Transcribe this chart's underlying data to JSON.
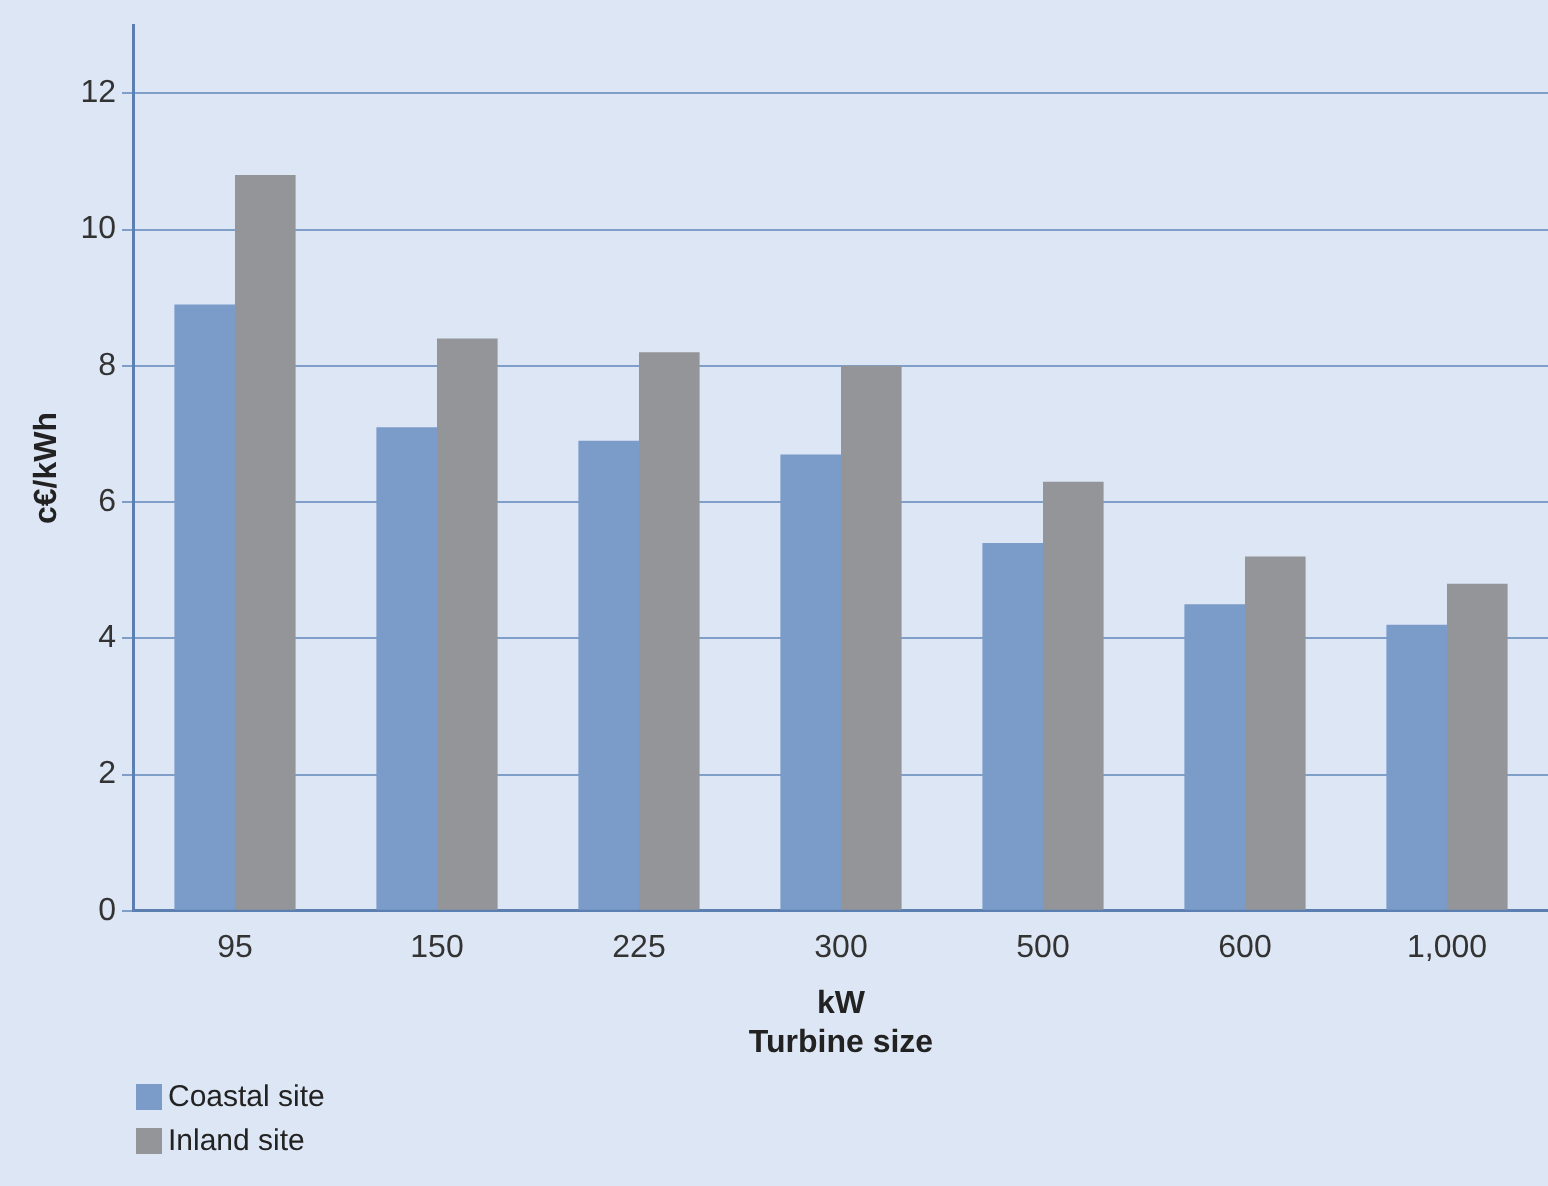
{
  "chart_data": {
    "type": "bar",
    "xlabel": "kW\nTurbine size",
    "ylabel": "c€/kWh",
    "categories": [
      "95",
      "150",
      "225",
      "300",
      "500",
      "600",
      "1,000"
    ],
    "series": [
      {
        "name": "Coastal site",
        "color": "#7b9bc9",
        "values": [
          8.9,
          7.1,
          6.9,
          6.7,
          5.4,
          4.5,
          4.2
        ]
      },
      {
        "name": "Inland site",
        "color": "#939598",
        "values": [
          10.8,
          8.4,
          8.2,
          8.0,
          6.3,
          5.2,
          4.8
        ]
      }
    ],
    "ylim": [
      0,
      13
    ],
    "yticks": [
      0,
      2,
      4,
      6,
      8,
      10,
      12
    ],
    "grid": "y",
    "legend": "bottom left"
  }
}
